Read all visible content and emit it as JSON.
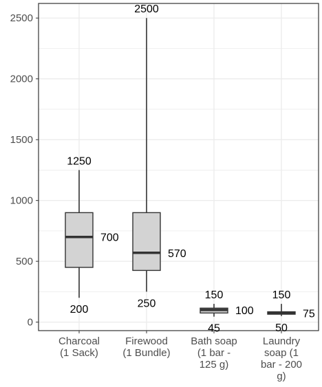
{
  "chart_data": {
    "type": "box",
    "title": "",
    "xlabel": "",
    "ylabel": "",
    "ylim": [
      -70,
      2620
    ],
    "yticks": [
      0,
      500,
      1000,
      1500,
      2000,
      2500
    ],
    "grid": true,
    "categories": [
      [
        "Charcoal",
        "(1 Sack)"
      ],
      [
        "Firewood",
        "(1 Bundle)"
      ],
      [
        "Bath soap",
        "(1 bar -",
        "125 g)"
      ],
      [
        "Laundry",
        "soap (1",
        "bar - 200",
        "g)"
      ]
    ],
    "boxes": [
      {
        "min": 200,
        "q1": 450,
        "median": 700,
        "q3": 900,
        "max": 1250
      },
      {
        "min": 250,
        "q1": 425,
        "median": 570,
        "q3": 900,
        "max": 2500
      },
      {
        "min": 45,
        "q1": 75,
        "median": 100,
        "q3": 115,
        "max": 150
      },
      {
        "min": 50,
        "q1": 65,
        "median": 75,
        "q3": 85,
        "max": 150
      }
    ],
    "labels": [
      {
        "max": "1250",
        "median": "700",
        "min": "200"
      },
      {
        "max": "2500",
        "median": "570",
        "min": "250"
      },
      {
        "max": "150",
        "median": "100",
        "min": "45"
      },
      {
        "max": "150",
        "median": "75",
        "min": "50"
      }
    ],
    "colors": {
      "box_fill": "#d3d3d3",
      "line": "#333333",
      "grid": "#ebebeb",
      "axis": "#333333"
    }
  }
}
